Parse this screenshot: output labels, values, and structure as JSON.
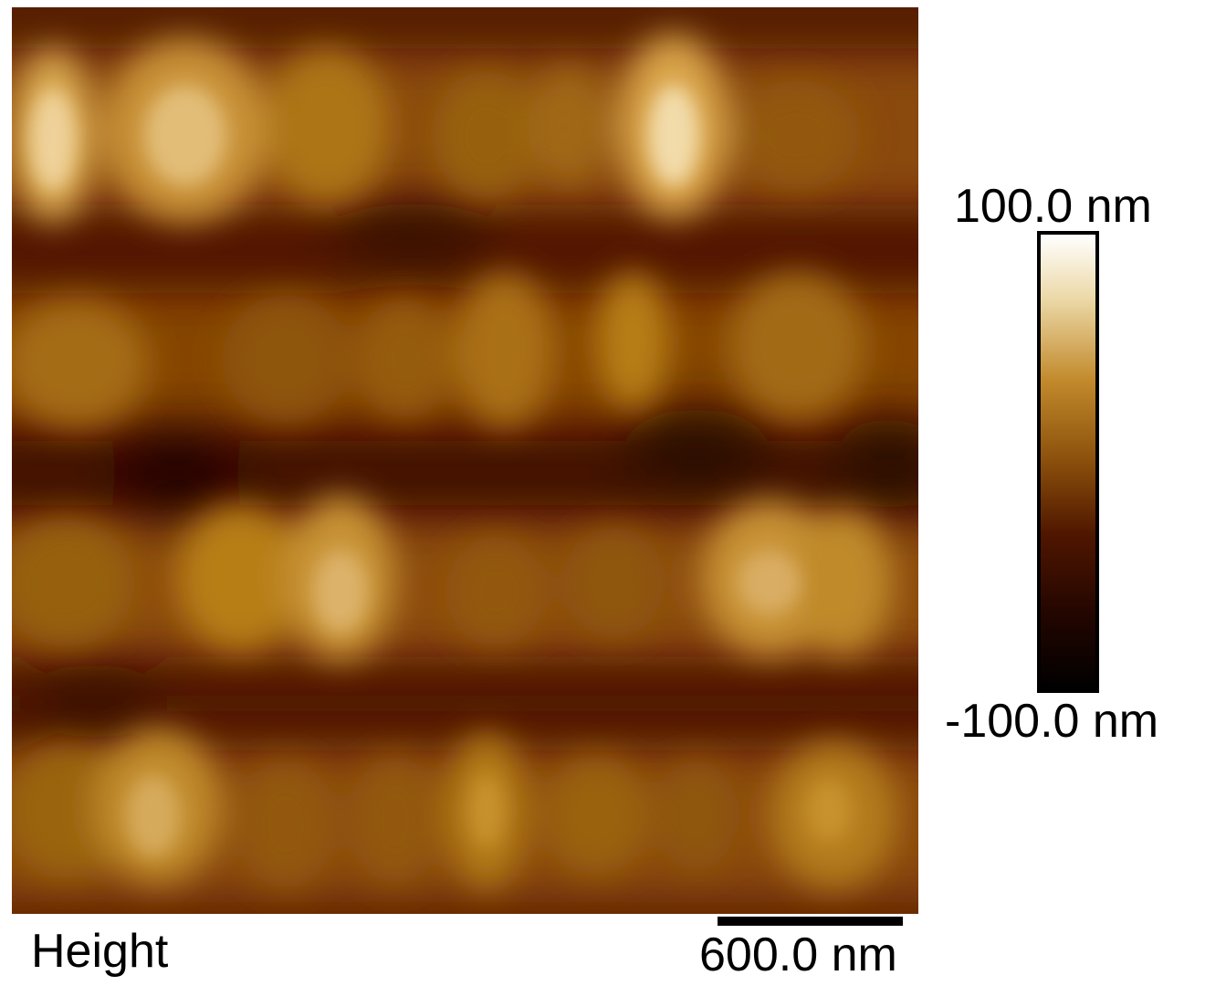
{
  "image": {
    "channel_label": "Height",
    "scalebar_label": "600.0 nm",
    "colorbar": {
      "max_label": "100.0 nm",
      "min_label": "-100.0 nm",
      "colors": [
        "#ffffff",
        "#ecd9a8",
        "#c28a2c",
        "#8a4f0b",
        "#4f1600",
        "#240600",
        "#000000"
      ]
    },
    "colors": {
      "ridge_bright": "#f2dcaa",
      "ridge": "#c5861c",
      "trough": "#4a0f00",
      "background": "#5a1c00"
    }
  }
}
